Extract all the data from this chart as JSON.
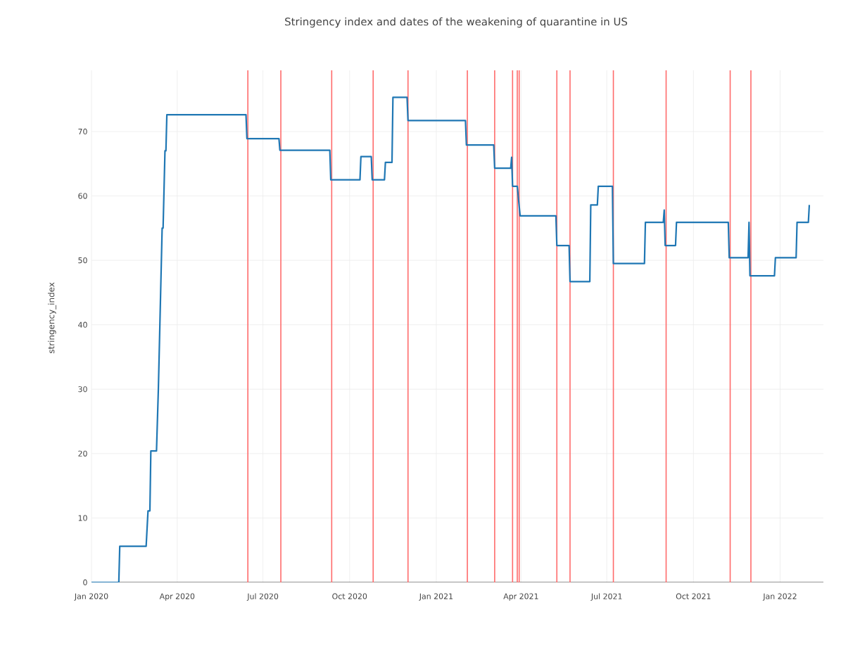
{
  "chart_data": {
    "type": "line",
    "title": "Stringency index and dates of the weakening of quarantine in US",
    "ylabel": "stringency_index",
    "xlim": [
      "2020-01-01",
      "2022-02-16"
    ],
    "ylim": [
      0,
      79.5
    ],
    "xticks": [
      {
        "value": "2020-01-01",
        "label": "Jan 2020"
      },
      {
        "value": "2020-04-01",
        "label": "Apr 2020"
      },
      {
        "value": "2020-07-01",
        "label": "Jul 2020"
      },
      {
        "value": "2020-10-01",
        "label": "Oct 2020"
      },
      {
        "value": "2021-01-01",
        "label": "Jan 2021"
      },
      {
        "value": "2021-04-01",
        "label": "Apr 2021"
      },
      {
        "value": "2021-07-01",
        "label": "Jul 2021"
      },
      {
        "value": "2021-10-01",
        "label": "Oct 2021"
      },
      {
        "value": "2022-01-01",
        "label": "Jan 2022"
      }
    ],
    "yticks": [
      0,
      10,
      20,
      30,
      40,
      50,
      60,
      70
    ],
    "grid": true,
    "series": [
      {
        "color": "#1f77b4",
        "x": [
          "2020-01-01",
          "2020-01-30",
          "2020-01-31",
          "2020-02-28",
          "2020-03-01",
          "2020-03-03",
          "2020-03-04",
          "2020-03-10",
          "2020-03-12",
          "2020-03-16",
          "2020-03-17",
          "2020-03-19",
          "2020-03-20",
          "2020-03-21",
          "2020-06-13",
          "2020-06-14",
          "2020-07-18",
          "2020-07-19",
          "2020-09-10",
          "2020-09-11",
          "2020-10-12",
          "2020-10-13",
          "2020-10-24",
          "2020-10-25",
          "2020-11-07",
          "2020-11-08",
          "2020-11-15",
          "2020-11-16",
          "2020-12-01",
          "2020-12-02",
          "2021-02-01",
          "2021-02-02",
          "2021-03-03",
          "2021-03-04",
          "2021-03-21",
          "2021-03-22",
          "2021-03-23",
          "2021-03-28",
          "2021-03-31",
          "2021-05-08",
          "2021-05-09",
          "2021-05-22",
          "2021-05-23",
          "2021-06-13",
          "2021-06-14",
          "2021-06-21",
          "2021-06-22",
          "2021-07-07",
          "2021-07-08",
          "2021-08-10",
          "2021-08-11",
          "2021-08-30",
          "2021-08-31",
          "2021-09-01",
          "2021-09-12",
          "2021-09-13",
          "2021-11-07",
          "2021-11-08",
          "2021-11-28",
          "2021-11-29",
          "2021-11-30",
          "2021-12-26",
          "2021-12-27",
          "2022-01-18",
          "2022-01-19",
          "2022-01-31",
          "2022-02-01"
        ],
        "values": [
          0,
          0,
          5.6,
          5.6,
          11.1,
          11.1,
          20.4,
          20.4,
          30.1,
          55,
          55,
          67,
          67,
          72.6,
          72.6,
          68.9,
          68.9,
          67.1,
          67.1,
          62.5,
          62.5,
          66.1,
          66.1,
          62.5,
          62.5,
          65.2,
          65.2,
          75.3,
          75.3,
          71.7,
          71.7,
          67.9,
          67.9,
          64.3,
          64.3,
          66,
          61.5,
          61.5,
          56.9,
          56.9,
          52.3,
          52.3,
          46.7,
          46.7,
          58.6,
          58.6,
          61.5,
          61.5,
          49.5,
          49.5,
          55.9,
          55.9,
          57.8,
          52.3,
          52.3,
          55.9,
          55.9,
          50.4,
          50.4,
          55.9,
          47.6,
          47.6,
          50.4,
          50.4,
          55.9,
          55.9,
          58.6
        ]
      }
    ],
    "ref_lines": [
      {
        "axis": "x",
        "value": "2020-06-15",
        "color": "#ff6b6b"
      },
      {
        "axis": "x",
        "value": "2020-07-20",
        "color": "#ff6b6b"
      },
      {
        "axis": "x",
        "value": "2020-09-12",
        "color": "#ff6b6b"
      },
      {
        "axis": "x",
        "value": "2020-10-26",
        "color": "#ff6b6b"
      },
      {
        "axis": "x",
        "value": "2020-12-02",
        "color": "#ff6b6b"
      },
      {
        "axis": "x",
        "value": "2021-02-03",
        "color": "#ff6b6b"
      },
      {
        "axis": "x",
        "value": "2021-03-04",
        "color": "#ff6b6b"
      },
      {
        "axis": "x",
        "value": "2021-03-23",
        "color": "#ff6b6b"
      },
      {
        "axis": "x",
        "value": "2021-03-28",
        "color": "#ff6b6b"
      },
      {
        "axis": "x",
        "value": "2021-03-30",
        "color": "#ff6b6b"
      },
      {
        "axis": "x",
        "value": "2021-05-09",
        "color": "#ff6b6b"
      },
      {
        "axis": "x",
        "value": "2021-05-23",
        "color": "#ff6b6b"
      },
      {
        "axis": "x",
        "value": "2021-07-08",
        "color": "#ff6b6b"
      },
      {
        "axis": "x",
        "value": "2021-09-02",
        "color": "#ff6b6b"
      },
      {
        "axis": "x",
        "value": "2021-11-09",
        "color": "#ff6b6b"
      },
      {
        "axis": "x",
        "value": "2021-12-01",
        "color": "#ff6b6b"
      }
    ]
  }
}
